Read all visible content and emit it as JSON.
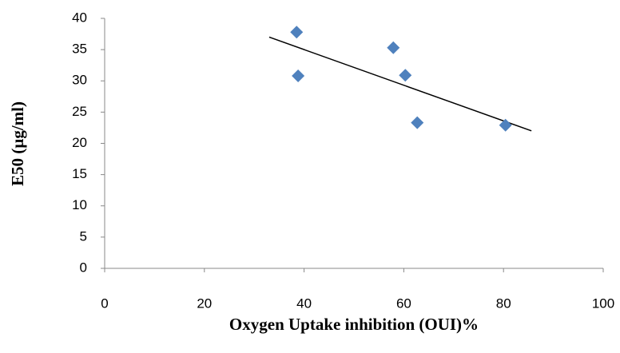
{
  "chart_data": {
    "type": "scatter",
    "x_label": "Oxygen Uptake inhibition (OUI)%",
    "y_label": "E50 (µg/ml)",
    "series": [
      {
        "color": "#4f81bd",
        "x": [
          38.5,
          38.8,
          57.9,
          60.3,
          62.7,
          80.4
        ],
        "values": [
          37.8,
          30.8,
          35.3,
          30.9,
          23.3,
          22.9
        ]
      }
    ],
    "trendline": {
      "color": "#000000",
      "x": [
        33,
        85.6
      ],
      "values": [
        37,
        22
      ]
    },
    "xlim": [
      0,
      100
    ],
    "xticks": [
      0,
      20,
      40,
      60,
      80,
      100
    ],
    "ylim": [
      0,
      40
    ],
    "yticks": [
      0,
      5,
      10,
      15,
      20,
      25,
      30,
      35,
      40
    ],
    "grid": false
  }
}
